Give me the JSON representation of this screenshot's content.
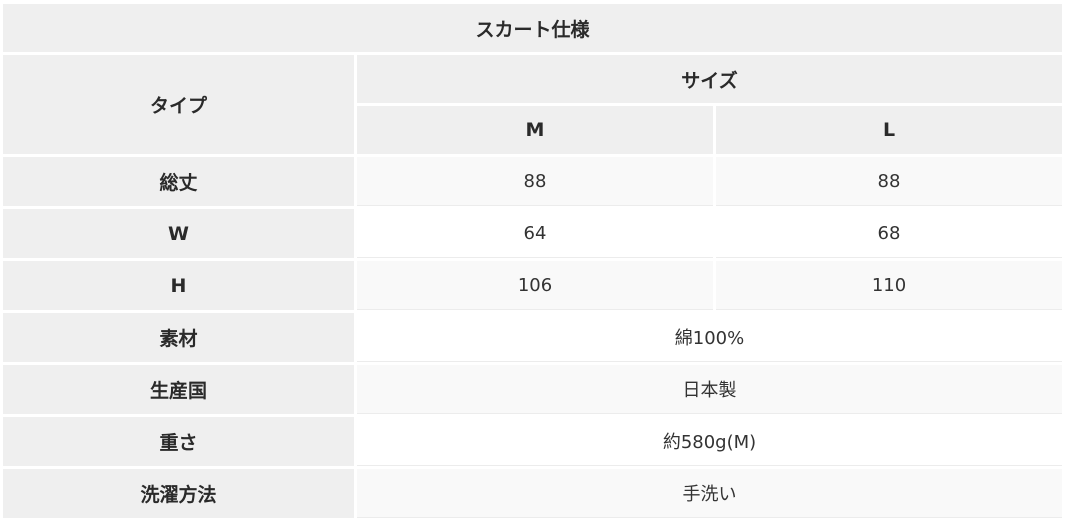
{
  "title": "スカート仕様",
  "header": {
    "type_label": "タイプ",
    "size_label": "サイズ",
    "sizes": [
      "M",
      "L"
    ]
  },
  "rows": [
    {
      "label": "総丈",
      "values": [
        "88",
        "88"
      ]
    },
    {
      "label": "W",
      "values": [
        "64",
        "68"
      ]
    },
    {
      "label": "H",
      "values": [
        "106",
        "110"
      ]
    },
    {
      "label": "素材",
      "value": "綿100%"
    },
    {
      "label": "生産国",
      "value": "日本製"
    },
    {
      "label": "重さ",
      "value": "約580g(M)"
    },
    {
      "label": "洗濯方法",
      "value": "手洗い"
    }
  ]
}
